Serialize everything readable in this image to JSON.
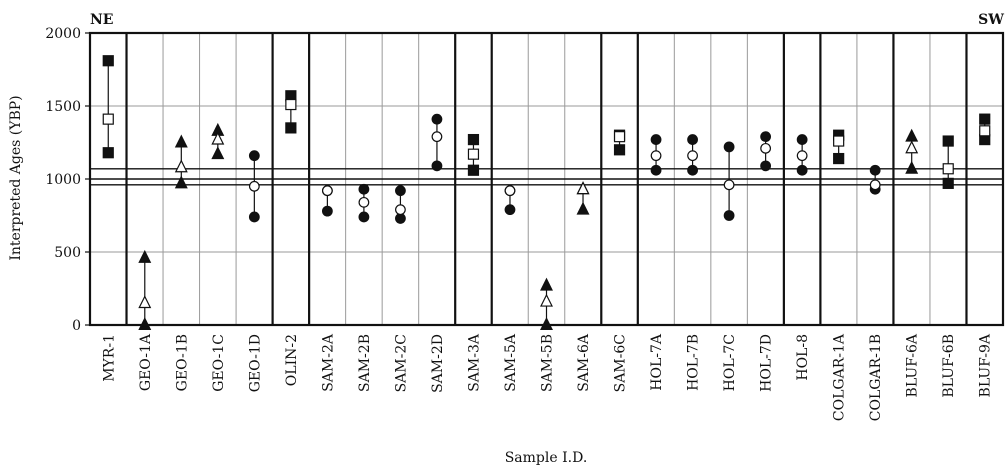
{
  "chart_data": {
    "type": "scatter",
    "title": "",
    "xlabel": "Sample I.D.",
    "ylabel": "Interpreted Ages (YBP)",
    "ylim": [
      0,
      2000
    ],
    "yticks": [
      0,
      500,
      1000,
      1500,
      2000
    ],
    "grid": true,
    "corner_labels": {
      "left": "NE",
      "right": "SW"
    },
    "reference_lines": [
      1070,
      1000,
      960
    ],
    "group_sizes": [
      1,
      4,
      1,
      4,
      1,
      3,
      1,
      4,
      1,
      2,
      2,
      1
    ],
    "samples": [
      {
        "id": "MYR-1",
        "marker": "square",
        "upper": 1810,
        "mid": 1410,
        "lower": 1180
      },
      {
        "id": "GEO-1A",
        "marker": "triangle",
        "upper": 460,
        "mid": 150,
        "lower": 0
      },
      {
        "id": "GEO-1B",
        "marker": "triangle",
        "upper": 1250,
        "mid": 1080,
        "lower": 970
      },
      {
        "id": "GEO-1C",
        "marker": "triangle",
        "upper": 1330,
        "mid": 1270,
        "lower": 1170
      },
      {
        "id": "GEO-1D",
        "marker": "circle",
        "upper": 1160,
        "mid": 950,
        "lower": 740
      },
      {
        "id": "OLIN-2",
        "marker": "square",
        "upper": 1570,
        "mid": 1510,
        "lower": 1350
      },
      {
        "id": "SAM-2A",
        "marker": "circle",
        "upper": 920,
        "mid": 920,
        "lower": 780
      },
      {
        "id": "SAM-2B",
        "marker": "circle",
        "upper": 930,
        "mid": 840,
        "lower": 740
      },
      {
        "id": "SAM-2C",
        "marker": "circle",
        "upper": 920,
        "mid": 790,
        "lower": 730
      },
      {
        "id": "SAM-2D",
        "marker": "circle",
        "upper": 1410,
        "mid": 1290,
        "lower": 1090
      },
      {
        "id": "SAM-3A",
        "marker": "square",
        "upper": 1270,
        "mid": 1170,
        "lower": 1060
      },
      {
        "id": "SAM-5A",
        "marker": "circle",
        "upper": 920,
        "mid": 920,
        "lower": 790
      },
      {
        "id": "SAM-5B",
        "marker": "triangle",
        "upper": 270,
        "mid": 160,
        "lower": 0
      },
      {
        "id": "SAM-6A",
        "marker": "triangle",
        "upper": 930,
        "mid": 930,
        "lower": 790
      },
      {
        "id": "SAM-6C",
        "marker": "square",
        "upper": 1300,
        "mid": 1290,
        "lower": 1200
      },
      {
        "id": "HOL-7A",
        "marker": "circle",
        "upper": 1270,
        "mid": 1160,
        "lower": 1060
      },
      {
        "id": "HOL-7B",
        "marker": "circle",
        "upper": 1270,
        "mid": 1160,
        "lower": 1060
      },
      {
        "id": "HOL-7C",
        "marker": "circle",
        "upper": 1220,
        "mid": 960,
        "lower": 750
      },
      {
        "id": "HOL-7D",
        "marker": "circle",
        "upper": 1290,
        "mid": 1210,
        "lower": 1090
      },
      {
        "id": "HOL-8",
        "marker": "circle",
        "upper": 1270,
        "mid": 1160,
        "lower": 1060
      },
      {
        "id": "COLGAR-1A",
        "marker": "square",
        "upper": 1300,
        "mid": 1260,
        "lower": 1140
      },
      {
        "id": "COLGAR-1B",
        "marker": "circle",
        "upper": 1060,
        "mid": 960,
        "lower": 930
      },
      {
        "id": "BLUF-6A",
        "marker": "triangle",
        "upper": 1290,
        "mid": 1210,
        "lower": 1070
      },
      {
        "id": "BLUF-6B",
        "marker": "square",
        "upper": 1260,
        "mid": 1070,
        "lower": 970
      },
      {
        "id": "BLUF-9A",
        "marker": "square",
        "upper": 1410,
        "mid": 1330,
        "lower": 1270
      }
    ]
  },
  "colors": {
    "ink": "#111111",
    "grid": "#9a9a9a",
    "open_fill": "#ffffff"
  }
}
